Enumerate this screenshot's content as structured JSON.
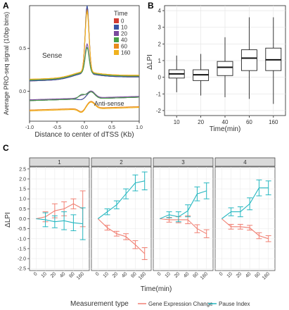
{
  "panels": {
    "a_letter": "A",
    "b_letter": "B",
    "c_letter": "C"
  },
  "chart_data": [
    {
      "type": "line",
      "title": "",
      "xlabel": "Distance to center of dTSS (Kb)",
      "ylabel": "Average PRO-seq signal (10bp bins)",
      "xlim": [
        -1.0,
        1.0
      ],
      "x_ticks": [
        "-1.0",
        "-0.5",
        "0.0",
        "0.5",
        "1.0"
      ],
      "y_ticks": [
        "0.0",
        "0.5"
      ],
      "ylim": [
        -0.35,
        1.0
      ],
      "legend_title": "Time",
      "legend_position": "top-right",
      "annotations": {
        "sense": "Sense",
        "antisense": "Anti-sense"
      },
      "series": [
        {
          "name": "0",
          "color": "#d33c32",
          "sense_peak": 0.9,
          "antisense_dip": -0.1,
          "sense_base": 0.12,
          "antisense_base": -0.09
        },
        {
          "name": "10",
          "color": "#3a54a4",
          "sense_peak": 0.93,
          "antisense_dip": -0.1,
          "sense_base": 0.12,
          "antisense_base": -0.09
        },
        {
          "name": "20",
          "color": "#7b4a9d",
          "sense_peak": 0.48,
          "antisense_dip": -0.05,
          "sense_base": 0.13,
          "antisense_base": -0.08
        },
        {
          "name": "40",
          "color": "#46a046",
          "sense_peak": 0.44,
          "antisense_dip": -0.04,
          "sense_base": 0.13,
          "antisense_base": -0.09
        },
        {
          "name": "60",
          "color": "#e98a1c",
          "sense_peak": 0.88,
          "antisense_dip": -0.24,
          "sense_base": 0.14,
          "antisense_base": -0.2
        },
        {
          "name": "160",
          "color": "#f0b21e",
          "sense_peak": 0.86,
          "antisense_dip": -0.25,
          "sense_base": 0.14,
          "antisense_base": -0.21
        }
      ]
    },
    {
      "type": "box",
      "title": "",
      "xlabel": "Time(min)",
      "ylabel": "ΔLPI",
      "ylim": [
        -2.3,
        4.3
      ],
      "y_ticks": [
        "-2",
        "-1",
        "0",
        "1",
        "2",
        "3",
        "4"
      ],
      "y_tick_values": [
        -2,
        -1,
        0,
        1,
        2,
        3,
        4
      ],
      "categories": [
        "10",
        "20",
        "40",
        "60",
        "160"
      ],
      "boxes": [
        {
          "whisker_low": -0.9,
          "q1": -0.05,
          "median": 0.2,
          "q3": 0.45,
          "whisker_high": 1.3
        },
        {
          "whisker_low": -1.1,
          "q1": -0.2,
          "median": 0.15,
          "q3": 0.45,
          "whisker_high": 1.4
        },
        {
          "whisker_low": -1.2,
          "q1": 0.1,
          "median": 0.6,
          "q3": 0.95,
          "whisker_high": 2.4
        },
        {
          "whisker_low": -1.3,
          "q1": 0.4,
          "median": 1.15,
          "q3": 1.65,
          "whisker_high": 3.6
        },
        {
          "whisker_low": -1.6,
          "q1": 0.4,
          "median": 1.05,
          "q3": 1.75,
          "whisker_high": 3.6
        }
      ]
    },
    {
      "type": "line",
      "title": "",
      "xlabel": "Time(min)",
      "ylabel": "ΔLPI",
      "ylim": [
        -2.6,
        2.6
      ],
      "y_ticks": [
        "-2.5",
        "-2.0",
        "-1.5",
        "-1.0",
        "-0.5",
        "0.0",
        "0.5",
        "1.0",
        "1.5",
        "2.0",
        "2.5"
      ],
      "y_tick_values": [
        -2.5,
        -2.0,
        -1.5,
        -1.0,
        -0.5,
        0.0,
        0.5,
        1.0,
        1.5,
        2.0,
        2.5
      ],
      "categories": [
        "0",
        "10",
        "20",
        "40",
        "60",
        "160"
      ],
      "facets": [
        "1",
        "2",
        "3",
        "4"
      ],
      "legend_title": "Measurement type",
      "legend_position": "bottom",
      "series_names": [
        "Gene Expression Change",
        "Pause Index"
      ],
      "series_colors": [
        "#f07f72",
        "#26b7c0"
      ],
      "facet_data": [
        {
          "gene_expression": [
            {
              "mean": 0.0,
              "err": 0.0
            },
            {
              "mean": 0.1,
              "err": 0.25
            },
            {
              "mean": 0.4,
              "err": 0.35
            },
            {
              "mean": 0.5,
              "err": 0.35
            },
            {
              "mean": 0.75,
              "err": 0.25
            },
            {
              "mean": 0.5,
              "err": 0.9
            }
          ],
          "pause_index": [
            {
              "mean": 0.0,
              "err": 0.0
            },
            {
              "mean": -0.05,
              "err": 0.35
            },
            {
              "mean": -0.15,
              "err": 0.3
            },
            {
              "mean": -0.1,
              "err": 0.45
            },
            {
              "mean": -0.2,
              "err": 0.4
            },
            {
              "mean": -0.25,
              "err": 0.8
            }
          ]
        },
        {
          "gene_expression": [
            {
              "mean": 0.0,
              "err": 0.0
            },
            {
              "mean": -0.45,
              "err": 0.12
            },
            {
              "mean": -0.75,
              "err": 0.12
            },
            {
              "mean": -0.9,
              "err": 0.15
            },
            {
              "mean": -1.3,
              "err": 0.2
            },
            {
              "mean": -1.75,
              "err": 0.3
            }
          ],
          "pause_index": [
            {
              "mean": 0.0,
              "err": 0.0
            },
            {
              "mean": 0.35,
              "err": 0.15
            },
            {
              "mean": 0.7,
              "err": 0.2
            },
            {
              "mean": 1.25,
              "err": 0.25
            },
            {
              "mean": 1.8,
              "err": 0.4
            },
            {
              "mean": 1.9,
              "err": 0.45
            }
          ]
        },
        {
          "gene_expression": [
            {
              "mean": 0.0,
              "err": 0.0
            },
            {
              "mean": -0.05,
              "err": 0.12
            },
            {
              "mean": -0.05,
              "err": 0.15
            },
            {
              "mean": -0.05,
              "err": 0.2
            },
            {
              "mean": -0.5,
              "err": 0.2
            },
            {
              "mean": -0.75,
              "err": 0.2
            }
          ],
          "pause_index": [
            {
              "mean": 0.0,
              "err": 0.0
            },
            {
              "mean": 0.2,
              "err": 0.15
            },
            {
              "mean": 0.1,
              "err": 0.25
            },
            {
              "mean": 0.4,
              "err": 0.3
            },
            {
              "mean": 1.25,
              "err": 0.35
            },
            {
              "mean": 1.4,
              "err": 0.4
            }
          ]
        },
        {
          "gene_expression": [
            {
              "mean": 0.0,
              "err": 0.0
            },
            {
              "mean": -0.4,
              "err": 0.12
            },
            {
              "mean": -0.4,
              "err": 0.12
            },
            {
              "mean": -0.45,
              "err": 0.12
            },
            {
              "mean": -0.85,
              "err": 0.15
            },
            {
              "mean": -1.0,
              "err": 0.15
            }
          ],
          "pause_index": [
            {
              "mean": 0.0,
              "err": 0.0
            },
            {
              "mean": 0.35,
              "err": 0.2
            },
            {
              "mean": 0.35,
              "err": 0.25
            },
            {
              "mean": 0.75,
              "err": 0.3
            },
            {
              "mean": 1.55,
              "err": 0.4
            },
            {
              "mean": 1.55,
              "err": 0.35
            }
          ]
        }
      ]
    }
  ]
}
